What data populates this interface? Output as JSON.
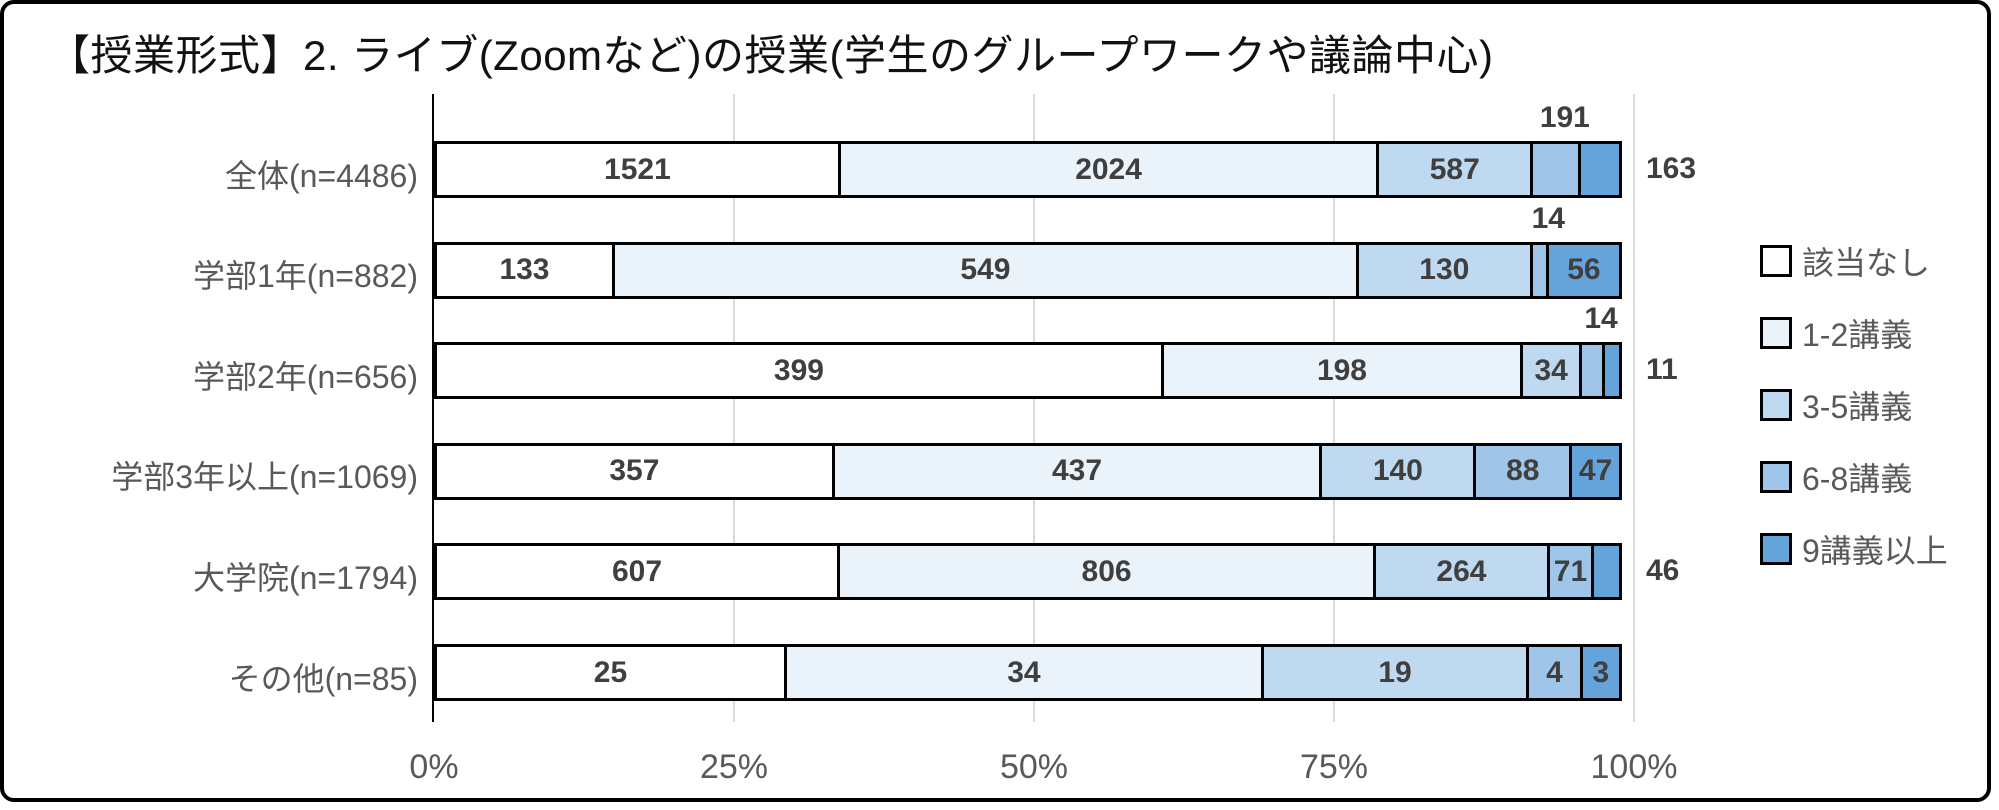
{
  "chart_data": {
    "type": "bar",
    "variant": "100-percent-stacked-horizontal",
    "title": "【授業形式】2. ライブ(Zoomなど)の授業(学生のグループワークや議論中心)",
    "categories": [
      "全体(n=4486)",
      "学部1年(n=882)",
      "学部2年(n=656)",
      "学部3年以上(n=1069)",
      "大学院(n=1794)",
      "その他(n=85)"
    ],
    "series": [
      {
        "name": "該当なし",
        "color": "#FFFFFF",
        "values": [
          1521,
          133,
          399,
          357,
          607,
          25
        ]
      },
      {
        "name": "1-2講義",
        "color": "#EBF3FA",
        "values": [
          2024,
          549,
          198,
          437,
          806,
          34
        ]
      },
      {
        "name": "3-5講義",
        "color": "#BFD9F0",
        "values": [
          587,
          130,
          34,
          140,
          264,
          19
        ]
      },
      {
        "name": "6-8講義",
        "color": "#9FC6E9",
        "values": [
          191,
          14,
          14,
          88,
          71,
          4
        ]
      },
      {
        "name": "9講義以上",
        "color": "#65A4DB",
        "values": [
          163,
          56,
          11,
          47,
          46,
          3
        ]
      }
    ],
    "x_ticks": [
      "0%",
      "25%",
      "50%",
      "75%",
      "100%"
    ],
    "xlim": [
      0,
      100
    ],
    "grid": true,
    "legend_position": "right",
    "label_placements": [
      [
        "in",
        "in",
        "in",
        "above",
        "right"
      ],
      [
        "in",
        "in",
        "in",
        "above",
        "in"
      ],
      [
        "in",
        "in",
        "in",
        "above",
        "right"
      ],
      [
        "in",
        "in",
        "in",
        "in",
        "in"
      ],
      [
        "in",
        "in",
        "in",
        "in",
        "right"
      ],
      [
        "in",
        "in",
        "in",
        "in",
        "in"
      ]
    ],
    "colors": {
      "value_label": "#3F3F3F",
      "axis_text": "#595959",
      "gridline": "#D9D9D9",
      "bar_border": "#000000",
      "frame_border": "#000000"
    }
  }
}
